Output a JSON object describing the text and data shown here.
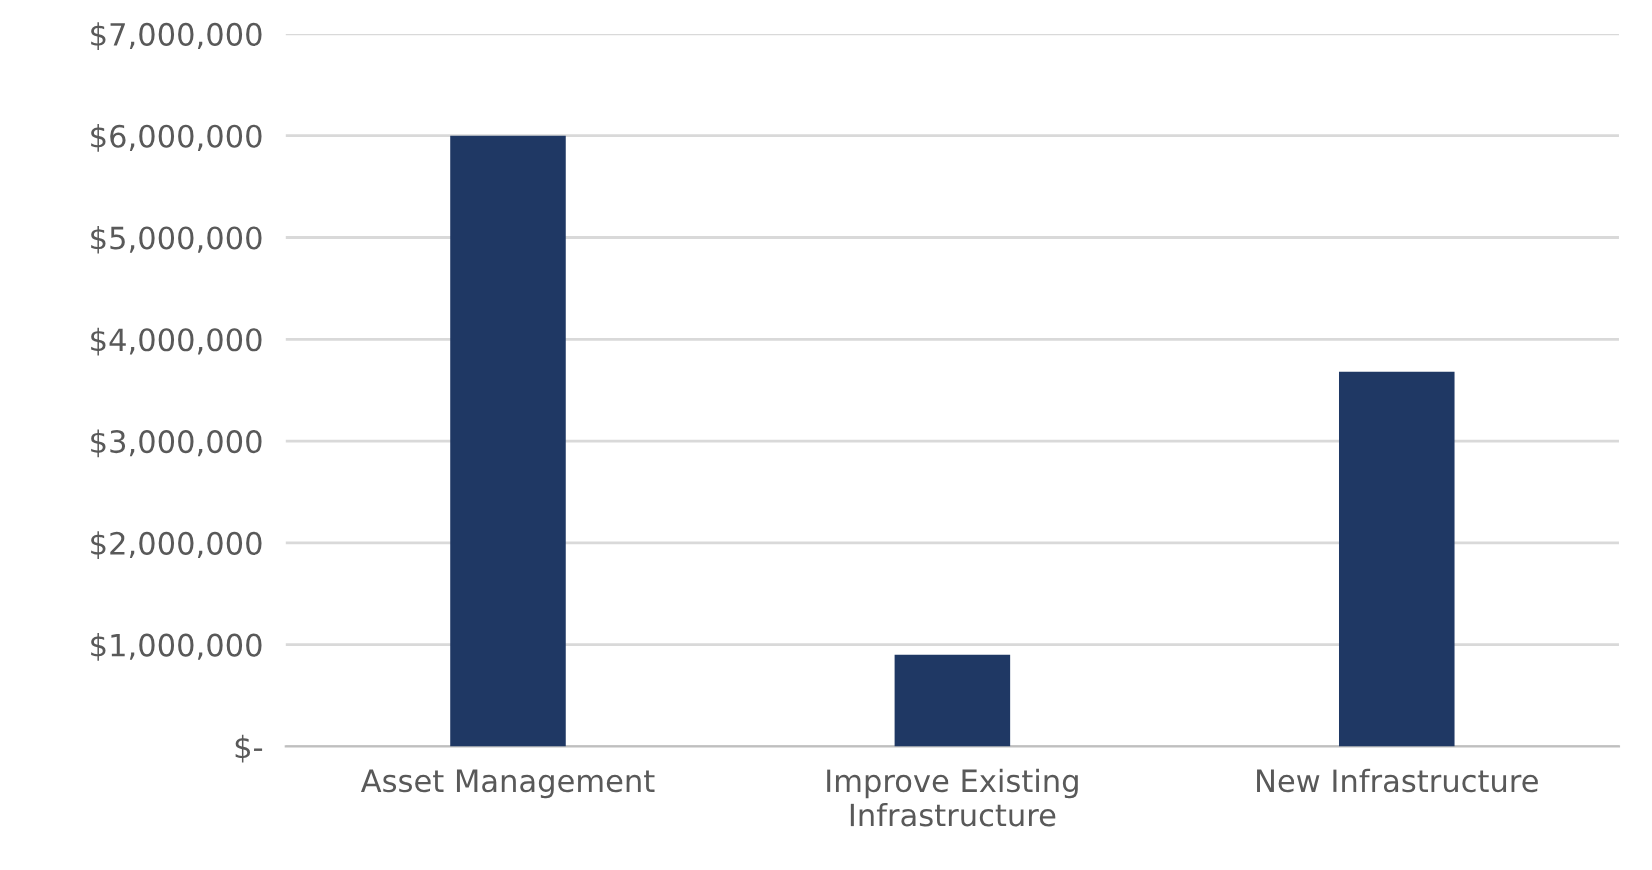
{
  "chart_data": {
    "type": "bar",
    "categories": [
      "Asset Management",
      "Improve Existing\nInfrastructure",
      "New Infrastructure"
    ],
    "values": [
      6000000,
      900000,
      3680000
    ],
    "color": "#1f3864",
    "ylim": [
      0,
      7000000
    ],
    "yticks": [
      {
        "value": 0,
        "label": "$-"
      },
      {
        "value": 1000000,
        "label": "$1,000,000"
      },
      {
        "value": 2000000,
        "label": "$2,000,000"
      },
      {
        "value": 3000000,
        "label": "$3,000,000"
      },
      {
        "value": 4000000,
        "label": "$4,000,000"
      },
      {
        "value": 5000000,
        "label": "$5,000,000"
      },
      {
        "value": 6000000,
        "label": "$6,000,000"
      },
      {
        "value": 7000000,
        "label": "$7,000,000"
      }
    ],
    "grid": "y",
    "legend": false
  }
}
